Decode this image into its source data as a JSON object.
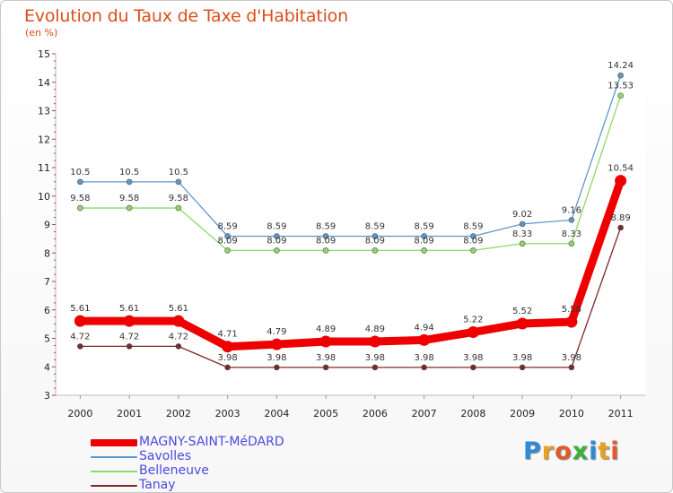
{
  "header": {
    "title": "Evolution du Taux de Taxe d'Habitation",
    "unit": "(en %)"
  },
  "logo": {
    "text": "Proxiti",
    "letters": [
      "P",
      "r",
      "o",
      "x",
      "i",
      "t",
      "i"
    ],
    "colors": [
      "#2e8bd8",
      "#e8a020",
      "#e05a2a",
      "#3ab03a",
      "#2e8bd8",
      "#e8a020",
      "#e05a2a"
    ]
  },
  "chart_data": {
    "type": "line",
    "title": "Evolution du Taux de Taxe d'Habitation",
    "ylabel": "(en %)",
    "ylim": [
      3,
      15
    ],
    "yticks": [
      3,
      4,
      5,
      6,
      7,
      8,
      9,
      10,
      11,
      12,
      13,
      14,
      15
    ],
    "x": [
      "2000",
      "2001",
      "2002",
      "2003",
      "2004",
      "2005",
      "2006",
      "2007",
      "2008",
      "2009",
      "2010",
      "2011"
    ],
    "series": [
      {
        "name": "MAGNY-SAINT-MéDARD",
        "color": "#ee0000",
        "values": [
          5.61,
          5.61,
          5.61,
          4.71,
          4.79,
          4.89,
          4.89,
          4.94,
          5.22,
          5.52,
          5.58,
          10.54
        ],
        "labels": [
          "5.61",
          "5.61",
          "5.61",
          "4.71",
          "4.79",
          "4.89",
          "4.89",
          "4.94",
          "5.22",
          "5.52",
          "5.58",
          "10.54"
        ]
      },
      {
        "name": "Savolles",
        "color": "#5f97c8",
        "values": [
          10.5,
          10.5,
          10.5,
          8.59,
          8.59,
          8.59,
          8.59,
          8.59,
          8.59,
          9.02,
          9.16,
          14.24
        ],
        "labels": [
          "10.5",
          "10.5",
          "10.5",
          "8.59",
          "8.59",
          "8.59",
          "8.59",
          "8.59",
          "8.59",
          "9.02",
          "9.16",
          "14.24"
        ]
      },
      {
        "name": "Belleneuve",
        "color": "#8cd86a",
        "values": [
          9.58,
          9.58,
          9.58,
          8.09,
          8.09,
          8.09,
          8.09,
          8.09,
          8.09,
          8.33,
          8.33,
          13.53
        ],
        "labels": [
          "9.58",
          "9.58",
          "9.58",
          "8.09",
          "8.09",
          "8.09",
          "8.09",
          "8.09",
          "8.09",
          "8.33",
          "8.33",
          "13.53"
        ]
      },
      {
        "name": "Tanay",
        "color": "#7a2a2a",
        "values": [
          4.72,
          4.72,
          4.72,
          3.98,
          3.98,
          3.98,
          3.98,
          3.98,
          3.98,
          3.98,
          3.98,
          8.89
        ],
        "labels": [
          "4.72",
          "4.72",
          "4.72",
          "3.98",
          "3.98",
          "3.98",
          "3.98",
          "3.98",
          "3.98",
          "3.98",
          "3.98",
          "8.89"
        ]
      }
    ]
  }
}
